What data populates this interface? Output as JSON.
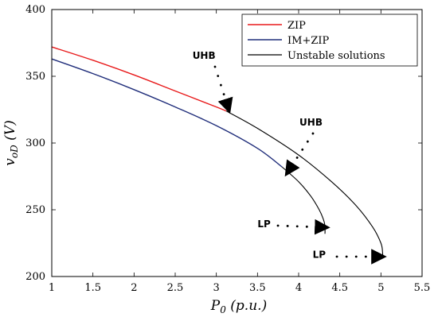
{
  "chart_data": {
    "type": "line",
    "xlabel": "P_0 (p.u.)",
    "ylabel": "v_oD (V)",
    "xlim": [
      1,
      5.5
    ],
    "ylim": [
      200,
      400
    ],
    "x_ticks": [
      "1",
      "1.5",
      "2",
      "2.5",
      "3",
      "3.5",
      "4",
      "4.5",
      "5",
      "5.5"
    ],
    "y_ticks": [
      "200",
      "250",
      "300",
      "350",
      "400"
    ],
    "grid": false,
    "legend_position": "top-right",
    "series": [
      {
        "name": "ZIP",
        "color": "#e8191a",
        "x": [
          1.0,
          1.5,
          2.0,
          2.5,
          3.0,
          3.12
        ],
        "y": [
          372,
          362,
          351,
          339,
          327,
          324
        ]
      },
      {
        "name": "IM+ZIP",
        "color": "#1f2d7a",
        "x": [
          1.0,
          1.5,
          2.0,
          2.5,
          3.0,
          3.5,
          3.8
        ],
        "y": [
          363,
          352,
          340,
          327,
          313,
          296,
          282
        ]
      },
      {
        "name": "Unstable solutions",
        "color": "#000000",
        "x": [
          3.12,
          3.5,
          4.0,
          4.4,
          4.7,
          4.9,
          5.0,
          5.02,
          5.02
        ],
        "y": [
          324,
          311,
          291,
          271,
          253,
          237,
          225,
          218,
          214
        ]
      },
      {
        "name": "",
        "color": "#000000",
        "x": [
          3.8,
          4.0,
          4.15,
          4.25,
          4.3,
          4.32,
          4.32
        ],
        "y": [
          282,
          271,
          260,
          250,
          243,
          238,
          232
        ]
      }
    ],
    "annotations": [
      {
        "text": "UHB",
        "x": 2.85,
        "y": 363
      },
      {
        "text": "UHB",
        "x": 4.15,
        "y": 313
      },
      {
        "text": "LP",
        "x": 3.58,
        "y": 237
      },
      {
        "text": "LP",
        "x": 4.25,
        "y": 214
      }
    ]
  }
}
